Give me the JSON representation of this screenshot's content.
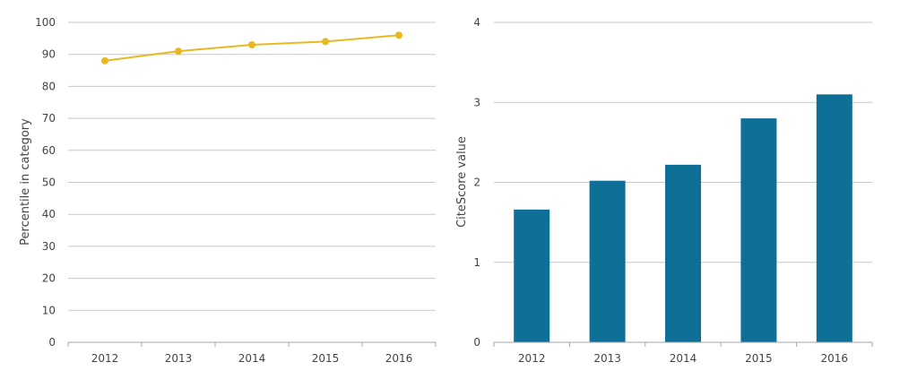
{
  "chart_data": [
    {
      "type": "line",
      "title": "",
      "xlabel": "",
      "ylabel": "Percentile in category",
      "categories": [
        "2012",
        "2013",
        "2014",
        "2015",
        "2016"
      ],
      "series": [
        {
          "name": "",
          "values": [
            88,
            91,
            93,
            94,
            96
          ]
        }
      ],
      "ylim": [
        0,
        100
      ],
      "yticks": [
        0,
        10,
        20,
        30,
        40,
        50,
        60,
        70,
        80,
        90,
        100
      ],
      "grid": true,
      "color": "#e8b821"
    },
    {
      "type": "bar",
      "title": "",
      "xlabel": "",
      "ylabel": "CiteScore value",
      "categories": [
        "2012",
        "2013",
        "2014",
        "2015",
        "2016"
      ],
      "values": [
        1.66,
        2.02,
        2.22,
        2.8,
        3.1
      ],
      "ylim": [
        0,
        4
      ],
      "yticks": [
        0,
        1,
        2,
        3,
        4
      ],
      "grid": true,
      "color": "#0e7096"
    }
  ]
}
